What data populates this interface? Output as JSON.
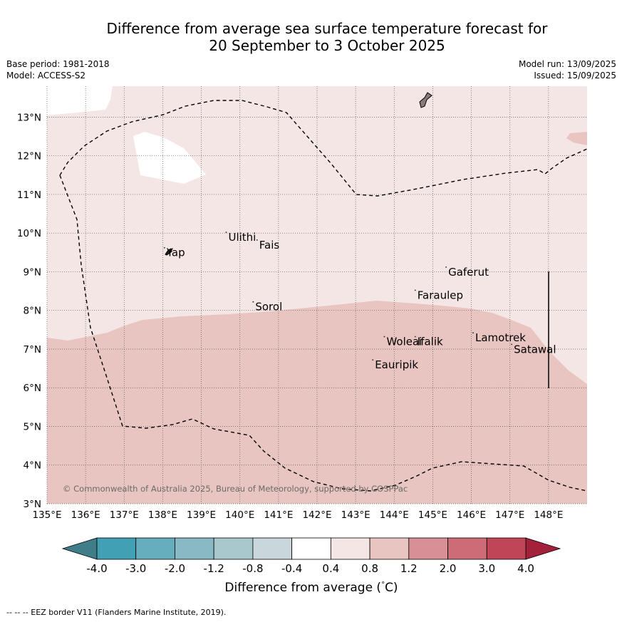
{
  "title_line1": "Difference from average sea surface temperature forecast for",
  "title_line2": "20 September to 3 October 2025",
  "base_period": "Base period: 1981-2018",
  "model": "Model: ACCESS-S2",
  "model_run": "Model run: 13/09/2025",
  "issued": "Issued: 15/09/2025",
  "copyright": "© Commonwealth of Australia 2025, Bureau of Meteorology, supported by COSPPac",
  "map": {
    "lon_ticks": [
      135,
      136,
      137,
      138,
      139,
      140,
      141,
      142,
      143,
      144,
      145,
      146,
      147,
      148
    ],
    "lon_labels": [
      "135°E",
      "136°E",
      "137°E",
      "138°E",
      "139°E",
      "140°E",
      "141°E",
      "142°E",
      "143°E",
      "144°E",
      "145°E",
      "146°E",
      "147°E",
      "148°E"
    ],
    "lat_ticks": [
      3,
      4,
      5,
      6,
      7,
      8,
      9,
      10,
      11,
      12,
      13
    ],
    "lat_labels": [
      "3°N",
      "4°N",
      "5°N",
      "6°N",
      "7°N",
      "8°N",
      "9°N",
      "10°N",
      "11°N",
      "12°N",
      "13°N"
    ],
    "places": [
      {
        "name": "Ulithi",
        "lon": 139.7,
        "lat": 9.8
      },
      {
        "name": "Fais",
        "lon": 140.5,
        "lat": 9.6
      },
      {
        "name": "Yap",
        "lon": 138.1,
        "lat": 9.4
      },
      {
        "name": "Gaferut",
        "lon": 145.4,
        "lat": 8.9
      },
      {
        "name": "Faraulep",
        "lon": 144.6,
        "lat": 8.3
      },
      {
        "name": "Sorol",
        "lon": 140.4,
        "lat": 8.0
      },
      {
        "name": "Lamotrek",
        "lon": 146.1,
        "lat": 7.2
      },
      {
        "name": "Woleai",
        "lon": 143.8,
        "lat": 7.1
      },
      {
        "name": "Ifalik",
        "lon": 144.6,
        "lat": 7.1
      },
      {
        "name": "Satawal",
        "lon": 147.1,
        "lat": 6.9
      },
      {
        "name": "Eauripik",
        "lon": 143.5,
        "lat": 6.5
      }
    ]
  },
  "colorbar": {
    "title": "Difference from average (",
    "unit_sup": "°",
    "unit": "C)",
    "labels": [
      "-4.0",
      "-3.0",
      "-2.0",
      "-1.2",
      "-0.8",
      "-0.4",
      "0.4",
      "0.8",
      "1.2",
      "2.0",
      "3.0",
      "4.0"
    ],
    "colors": [
      "#41a0b4",
      "#66aebd",
      "#88b9c4",
      "#a9c8cd",
      "#c9d6db",
      "#ffffff",
      "#f4e6e4",
      "#e8c5c0",
      "#d88f96",
      "#cd6b77",
      "#c04556"
    ],
    "under_color": "#3f7d88",
    "over_color": "#a3213b",
    "field_colors": {
      "range_04_08": "#f4e6e4",
      "range_08_12": "#e8c5c0"
    }
  },
  "footer": "-- -- -- EEZ border V11 (Flanders Marine Institute, 2019)."
}
